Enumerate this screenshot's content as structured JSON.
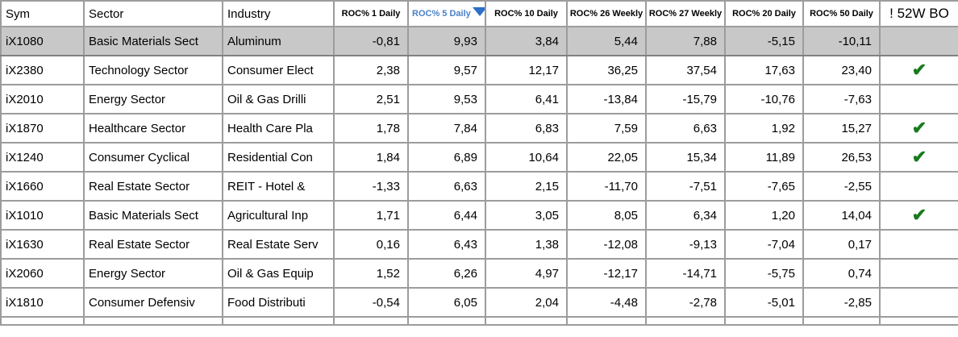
{
  "app": {
    "type": "stock-screener-table"
  },
  "table": {
    "columns": [
      {
        "key": "sym",
        "label": "Sym",
        "type": "text"
      },
      {
        "key": "sector",
        "label": "Sector",
        "type": "text"
      },
      {
        "key": "industry",
        "label": "Industry",
        "type": "text"
      },
      {
        "key": "roc1",
        "label": "ROC% 1 Daily",
        "type": "roc"
      },
      {
        "key": "roc5",
        "label": "ROC% 5 Daily",
        "type": "roc",
        "sorted": "descending"
      },
      {
        "key": "roc10",
        "label": "ROC% 10 Daily",
        "type": "roc"
      },
      {
        "key": "roc26w",
        "label": "ROC% 26 Weekly",
        "type": "roc"
      },
      {
        "key": "roc27w",
        "label": "ROC% 27 Weekly",
        "type": "roc"
      },
      {
        "key": "roc20",
        "label": "ROC% 20 Daily",
        "type": "roc"
      },
      {
        "key": "roc50",
        "label": "ROC% 50 Daily",
        "type": "roc"
      },
      {
        "key": "bo52w",
        "label": "! 52W BO",
        "type": "bo"
      }
    ],
    "sort": {
      "column": "roc5",
      "direction": "descending",
      "icon": "triangle-down-icon"
    },
    "check_icon": {
      "name": "checkmark-icon",
      "glyph": "✔",
      "color": "#177a1d"
    },
    "colors": {
      "selected_row_bg": "#c8c8c8",
      "grid_border": "#9c9c9c",
      "sorted_header_text": "#4a80c8",
      "sort_triangle": "#2d6fc9",
      "check_green": "#177a1d",
      "text": "#000000",
      "background": "#ffffff"
    },
    "rows": [
      {
        "selected": true,
        "sym": "iX1080",
        "sector": "Basic Materials Sect",
        "industry": "Aluminum",
        "roc1": "-0,81",
        "roc5": "9,93",
        "roc10": "3,84",
        "roc26w": "5,44",
        "roc27w": "7,88",
        "roc20": "-5,15",
        "roc50": "-10,11",
        "bo52w": false
      },
      {
        "selected": false,
        "sym": "iX2380",
        "sector": "Technology Sector",
        "industry": "Consumer Elect",
        "roc1": "2,38",
        "roc5": "9,57",
        "roc10": "12,17",
        "roc26w": "36,25",
        "roc27w": "37,54",
        "roc20": "17,63",
        "roc50": "23,40",
        "bo52w": true
      },
      {
        "selected": false,
        "sym": "iX2010",
        "sector": "Energy Sector",
        "industry": "Oil & Gas Drilli",
        "roc1": "2,51",
        "roc5": "9,53",
        "roc10": "6,41",
        "roc26w": "-13,84",
        "roc27w": "-15,79",
        "roc20": "-10,76",
        "roc50": "-7,63",
        "bo52w": false
      },
      {
        "selected": false,
        "sym": "iX1870",
        "sector": "Healthcare Sector",
        "industry": "Health Care Pla",
        "roc1": "1,78",
        "roc5": "7,84",
        "roc10": "6,83",
        "roc26w": "7,59",
        "roc27w": "6,63",
        "roc20": "1,92",
        "roc50": "15,27",
        "bo52w": true
      },
      {
        "selected": false,
        "sym": "iX1240",
        "sector": "Consumer Cyclical",
        "industry": "Residential Con",
        "roc1": "1,84",
        "roc5": "6,89",
        "roc10": "10,64",
        "roc26w": "22,05",
        "roc27w": "15,34",
        "roc20": "11,89",
        "roc50": "26,53",
        "bo52w": true
      },
      {
        "selected": false,
        "sym": "iX1660",
        "sector": "Real Estate Sector",
        "industry": "REIT - Hotel &",
        "roc1": "-1,33",
        "roc5": "6,63",
        "roc10": "2,15",
        "roc26w": "-11,70",
        "roc27w": "-7,51",
        "roc20": "-7,65",
        "roc50": "-2,55",
        "bo52w": false
      },
      {
        "selected": false,
        "sym": "iX1010",
        "sector": "Basic Materials Sect",
        "industry": "Agricultural Inp",
        "roc1": "1,71",
        "roc5": "6,44",
        "roc10": "3,05",
        "roc26w": "8,05",
        "roc27w": "6,34",
        "roc20": "1,20",
        "roc50": "14,04",
        "bo52w": true
      },
      {
        "selected": false,
        "sym": "iX1630",
        "sector": "Real Estate Sector",
        "industry": "Real Estate Serv",
        "roc1": "0,16",
        "roc5": "6,43",
        "roc10": "1,38",
        "roc26w": "-12,08",
        "roc27w": "-9,13",
        "roc20": "-7,04",
        "roc50": "0,17",
        "bo52w": false
      },
      {
        "selected": false,
        "sym": "iX2060",
        "sector": "Energy Sector",
        "industry": "Oil & Gas Equip",
        "roc1": "1,52",
        "roc5": "6,26",
        "roc10": "4,97",
        "roc26w": "-12,17",
        "roc27w": "-14,71",
        "roc20": "-5,75",
        "roc50": "0,74",
        "bo52w": false
      },
      {
        "selected": false,
        "sym": "iX1810",
        "sector": "Consumer Defensiv",
        "industry": "Food Distributi",
        "roc1": "-0,54",
        "roc5": "6,05",
        "roc10": "2,04",
        "roc26w": "-4,48",
        "roc27w": "-2,78",
        "roc20": "-5,01",
        "roc50": "-2,85",
        "bo52w": false
      }
    ]
  }
}
